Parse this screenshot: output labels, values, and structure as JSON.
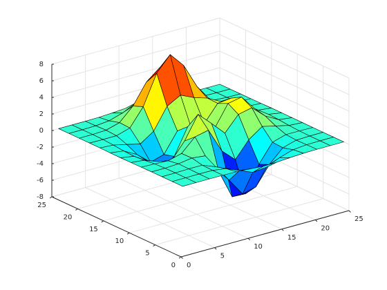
{
  "chart_data": {
    "type": "surface",
    "x": [
      1,
      3,
      5,
      7,
      9,
      11,
      13,
      15,
      17,
      19,
      21,
      23,
      25
    ],
    "y": [
      1,
      3,
      5,
      7,
      9,
      11,
      13,
      15,
      17,
      19,
      21,
      23,
      25
    ],
    "z": [
      [
        0,
        0,
        0,
        0,
        -0.03,
        -0.14,
        -0.25,
        -0.22,
        -0.11,
        -0.03,
        0,
        0,
        0
      ],
      [
        0,
        0,
        0.02,
        0,
        -0.23,
        -0.91,
        -1.57,
        -1.41,
        -0.69,
        -0.18,
        -0.03,
        0,
        0
      ],
      [
        0,
        0.01,
        0.05,
        0.05,
        -0.59,
        -2.64,
        -4.75,
        -4.34,
        -2.1,
        -0.53,
        -0.06,
        0,
        0
      ],
      [
        0,
        0,
        0.08,
        0.33,
        0.15,
        -2.19,
        -5.68,
        -5.76,
        -2.64,
        -0.44,
        0.04,
        0.03,
        0
      ],
      [
        -0.01,
        -0.06,
        -0.13,
        0.3,
        1.86,
        2.22,
        -0.72,
        -2.22,
        -0.27,
        0.88,
        0.5,
        0.11,
        0.01
      ],
      [
        -0.03,
        -0.2,
        -0.8,
        -1.21,
        0.8,
        3.55,
        2,
        0.39,
        2.2,
        2.56,
        1.12,
        0.23,
        0.02
      ],
      [
        -0.04,
        -0.3,
        -1.33,
        -2.77,
        -1.65,
        1.48,
        0.98,
        0.38,
        2.94,
        3.27,
        1.41,
        0.3,
        0.03
      ],
      [
        -0.03,
        -0.24,
        -1.12,
        -2.49,
        -2,
        0.39,
        0.46,
        0.38,
        2.38,
        2.56,
        1.09,
        0.22,
        0.03
      ],
      [
        -0.01,
        -0.11,
        -0.48,
        -0.87,
        0.23,
        2.79,
        3.69,
        2.94,
        2.43,
        1.58,
        0.58,
        0.11,
        0.01
      ],
      [
        0,
        -0.02,
        -0.01,
        0.48,
        2.61,
        6.2,
        8,
        6.25,
        3.25,
        1.19,
        0.29,
        0.05,
        0
      ],
      [
        0,
        0.01,
        0.08,
        0.55,
        2.1,
        4.55,
        5.85,
        4.56,
        2.21,
        0.68,
        0.13,
        0.02,
        0
      ],
      [
        0,
        0,
        0.03,
        0.19,
        0.69,
        1.47,
        1.88,
        1.47,
        0.7,
        0.21,
        0.04,
        0,
        0
      ],
      [
        0,
        0,
        0,
        0.03,
        0.11,
        0.23,
        0.3,
        0.23,
        0.11,
        0.03,
        0,
        0,
        0
      ]
    ],
    "xlim": [
      0,
      25
    ],
    "ylim": [
      0,
      25
    ],
    "zlim": [
      -8,
      8
    ],
    "xticks": [
      0,
      5,
      10,
      15,
      20,
      25
    ],
    "yticks": [
      0,
      5,
      10,
      15,
      20,
      25
    ],
    "zticks": [
      -8,
      -6,
      -4,
      -2,
      0,
      2,
      4,
      6,
      8
    ],
    "grid": true,
    "colormap": "jet",
    "edge_color": "#000000"
  }
}
